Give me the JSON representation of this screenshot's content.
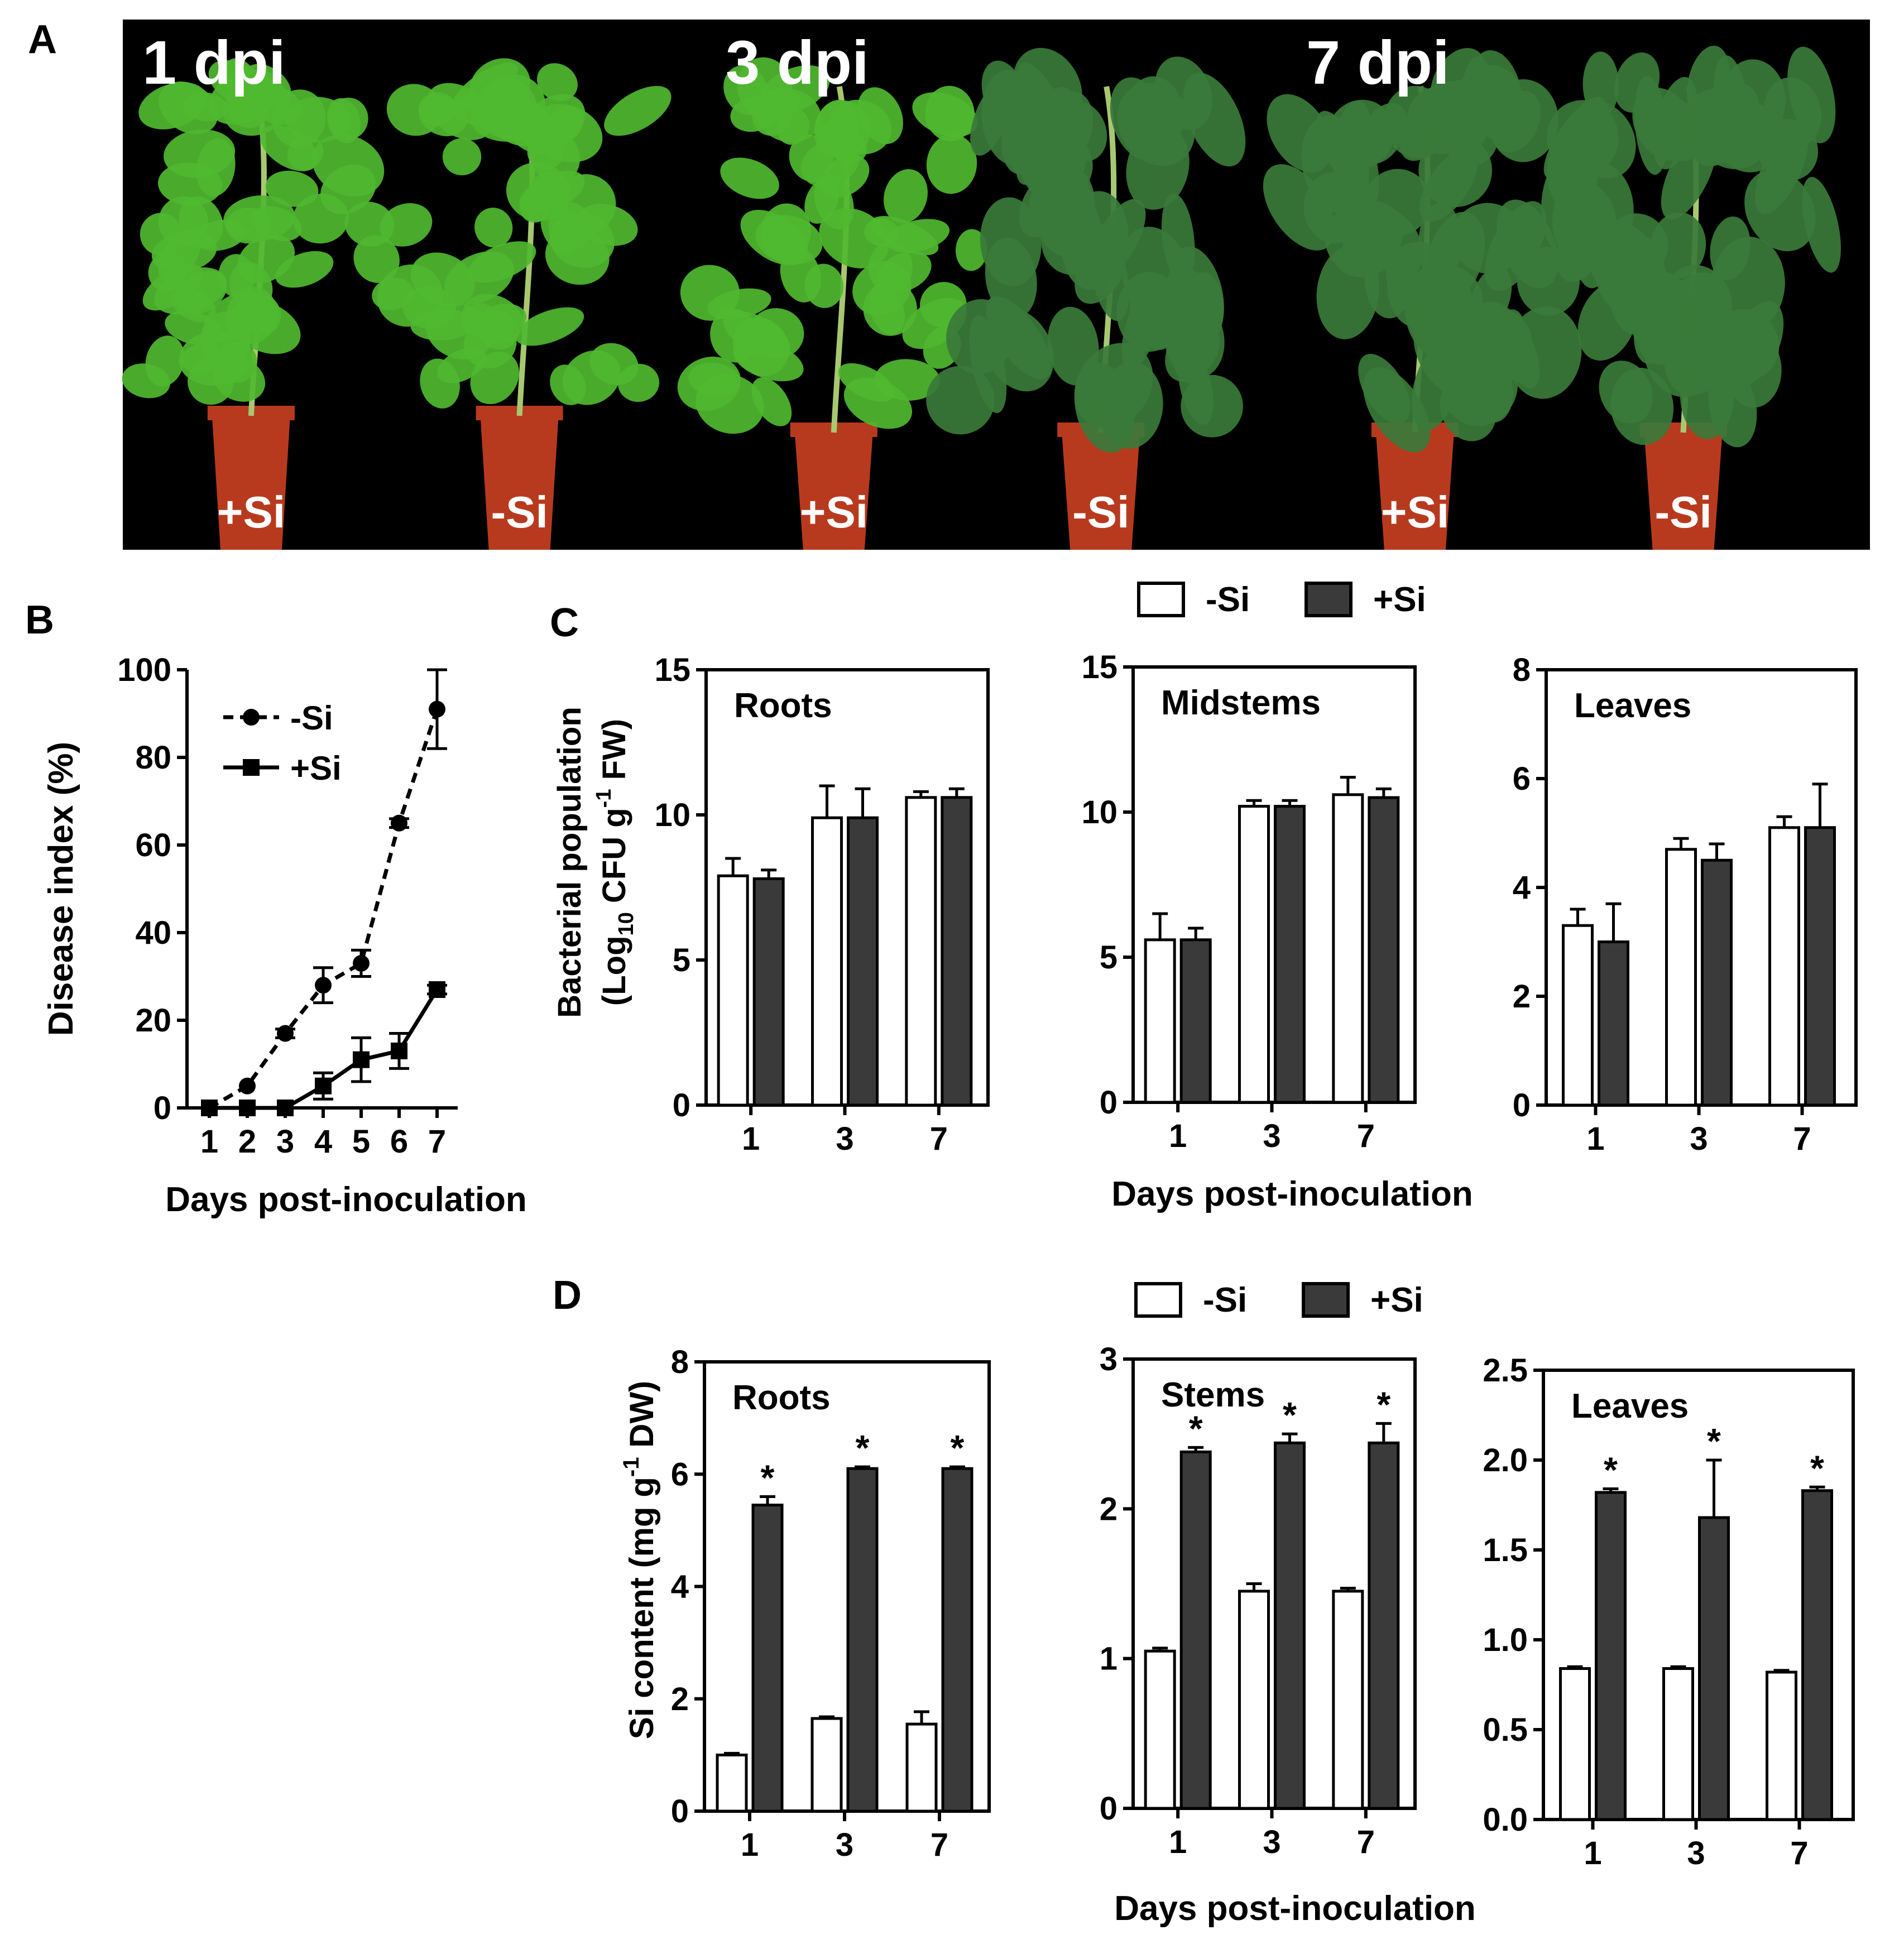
{
  "figure": {
    "panel_letters": [
      "A",
      "B",
      "C",
      "D"
    ]
  },
  "photos": {
    "panels": [
      {
        "label": "1 dpi",
        "plants": [
          "+Si",
          "-Si"
        ]
      },
      {
        "label": "3 dpi",
        "plants": [
          "+Si",
          "-Si"
        ]
      },
      {
        "label": "7 dpi",
        "plants": [
          "+Si",
          "-Si"
        ]
      }
    ],
    "colors": {
      "healthy_leaf": "#4fb830",
      "wilted_leaf": "#3a7a3a",
      "stem": "#a8c870",
      "pot": "#b83a1e"
    }
  },
  "legend": {
    "entries": [
      "-Si",
      "+Si"
    ],
    "colors": {
      "minus_si": "#ffffff",
      "plus_si": "#3a3a3a",
      "outline": "#000000"
    }
  },
  "chart_data": [
    {
      "panel": "B",
      "type": "line",
      "title": "",
      "xlabel": "Days post-inoculation",
      "ylabel": "Disease index (%)",
      "x": [
        1,
        2,
        3,
        4,
        5,
        6,
        7
      ],
      "xticks": [
        "1",
        "2",
        "3",
        "4",
        "5",
        "6",
        "7"
      ],
      "ylim": [
        0,
        100
      ],
      "yticks": [
        "0",
        "20",
        "40",
        "60",
        "80",
        "100"
      ],
      "legend_position": "top-left",
      "series": [
        {
          "name": "-Si",
          "style": "dashed",
          "marker": "circle",
          "values": [
            0,
            5,
            17,
            28,
            33,
            65,
            91
          ],
          "errors": [
            0,
            0,
            1,
            4,
            3,
            1,
            9
          ]
        },
        {
          "name": "+Si",
          "style": "solid",
          "marker": "square",
          "values": [
            0,
            0,
            0,
            5,
            11,
            13,
            27
          ],
          "errors": [
            0,
            0,
            0,
            3,
            5,
            4,
            1
          ]
        }
      ]
    },
    {
      "panel": "C",
      "type": "bar",
      "title": "Roots",
      "ylabel": "",
      "categories": [
        "1",
        "3",
        "7"
      ],
      "ylim": [
        0,
        15
      ],
      "yticks": [
        "0",
        "5",
        "10",
        "15"
      ],
      "series": [
        {
          "name": "-Si",
          "values": [
            7.9,
            9.9,
            10.6
          ],
          "errors": [
            0.6,
            1.1,
            0.2
          ]
        },
        {
          "name": "+Si",
          "values": [
            7.8,
            9.9,
            10.6
          ],
          "errors": [
            0.3,
            1.0,
            0.3
          ]
        }
      ],
      "significance": [
        "",
        "",
        ""
      ]
    },
    {
      "panel": "C",
      "type": "bar",
      "title": "Midstems",
      "ylabel": "",
      "categories": [
        "1",
        "3",
        "7"
      ],
      "ylim": [
        0,
        15
      ],
      "yticks": [
        "0",
        "5",
        "10",
        "15"
      ],
      "series": [
        {
          "name": "-Si",
          "values": [
            5.6,
            10.2,
            10.6
          ],
          "errors": [
            0.9,
            0.2,
            0.6
          ]
        },
        {
          "name": "+Si",
          "values": [
            5.6,
            10.2,
            10.5
          ],
          "errors": [
            0.4,
            0.2,
            0.3
          ]
        }
      ],
      "significance": [
        "",
        "",
        ""
      ]
    },
    {
      "panel": "C",
      "type": "bar",
      "title": "Leaves",
      "ylabel": "",
      "categories": [
        "1",
        "3",
        "7"
      ],
      "ylim": [
        0,
        8
      ],
      "yticks": [
        "0",
        "2",
        "4",
        "6",
        "8"
      ],
      "series": [
        {
          "name": "-Si",
          "values": [
            3.3,
            4.7,
            5.1
          ],
          "errors": [
            0.3,
            0.2,
            0.2
          ]
        },
        {
          "name": "+Si",
          "values": [
            3.0,
            4.5,
            5.1
          ],
          "errors": [
            0.7,
            0.3,
            0.8
          ]
        }
      ],
      "significance": [
        "",
        "",
        ""
      ]
    },
    {
      "panel": "D",
      "type": "bar",
      "title": "Roots",
      "ylabel": "",
      "categories": [
        "1",
        "3",
        "7"
      ],
      "ylim": [
        0,
        8
      ],
      "yticks": [
        "0",
        "2",
        "4",
        "6",
        "8"
      ],
      "series": [
        {
          "name": "-Si",
          "values": [
            1.0,
            1.65,
            1.55
          ],
          "errors": [
            0.03,
            0.03,
            0.22
          ]
        },
        {
          "name": "+Si",
          "values": [
            5.45,
            6.1,
            6.1
          ],
          "errors": [
            0.15,
            0.03,
            0.03
          ]
        }
      ],
      "significance": [
        "*",
        "*",
        "*"
      ]
    },
    {
      "panel": "D",
      "type": "bar",
      "title": "Stems",
      "ylabel": "",
      "categories": [
        "1",
        "3",
        "7"
      ],
      "ylim": [
        0,
        3
      ],
      "yticks": [
        "0",
        "1",
        "2",
        "3"
      ],
      "series": [
        {
          "name": "-Si",
          "values": [
            1.05,
            1.45,
            1.45
          ],
          "errors": [
            0.02,
            0.05,
            0.02
          ]
        },
        {
          "name": "+Si",
          "values": [
            2.38,
            2.44,
            2.44
          ],
          "errors": [
            0.03,
            0.06,
            0.13
          ]
        }
      ],
      "significance": [
        "*",
        "*",
        "*"
      ]
    },
    {
      "panel": "D",
      "type": "bar",
      "title": "Leaves",
      "ylabel": "",
      "categories": [
        "1",
        "3",
        "7"
      ],
      "ylim": [
        0,
        2.5
      ],
      "yticks": [
        "0.0",
        "0.5",
        "1.0",
        "1.5",
        "2.0",
        "2.5"
      ],
      "series": [
        {
          "name": "-Si",
          "values": [
            0.84,
            0.84,
            0.82
          ],
          "errors": [
            0.01,
            0.01,
            0.01
          ]
        },
        {
          "name": "+Si",
          "values": [
            1.82,
            1.68,
            1.83
          ],
          "errors": [
            0.02,
            0.32,
            0.02
          ]
        }
      ],
      "significance": [
        "*",
        "*",
        "*"
      ]
    }
  ],
  "shared_labels": {
    "c_ylabel_line1": "Bacterial population",
    "c_ylabel_line2_pre": "(Log",
    "c_ylabel_sub": "10",
    "c_ylabel_mid": " CFU g",
    "c_ylabel_sup": "-1",
    "c_ylabel_post": " FW)",
    "c_xlabel": "Days post-inoculation",
    "d_ylabel_pre": "Si content (mg g",
    "d_ylabel_sup": "-1",
    "d_ylabel_post": " DW)",
    "d_xlabel": "Days post-inoculation"
  }
}
